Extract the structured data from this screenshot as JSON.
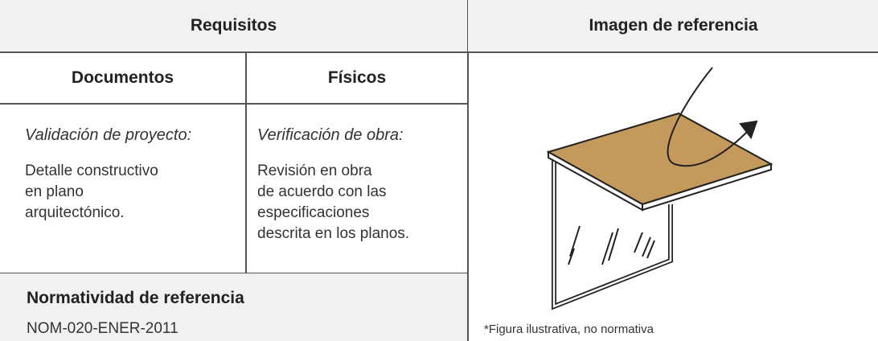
{
  "table": {
    "header": {
      "requirements": "Requisitos",
      "image": "Imagen de referencia"
    },
    "subheader": {
      "documents": "Documentos",
      "physical": "Físicos"
    },
    "documents": {
      "title": "Validación de proyecto:",
      "lines": [
        "Detalle constructivo",
        "en plano",
        "arquitectónico."
      ]
    },
    "physical": {
      "title": "Verificación de obra:",
      "lines": [
        "Revisión en obra",
        "de acuerdo con las",
        "especificaciones",
        "descrita en los planos."
      ]
    },
    "norm": {
      "title": "Normatividad de referencia",
      "value": "NOM-020-ENER-2011"
    },
    "caption": "*Figura ilustrativa, no normativa"
  }
}
